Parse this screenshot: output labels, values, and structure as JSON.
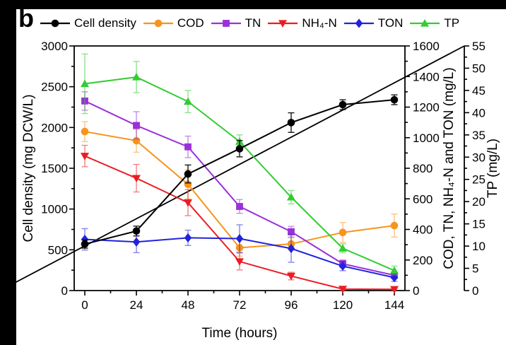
{
  "panel_label": "b",
  "chart_data": {
    "type": "line",
    "title": "",
    "xlabel": "Time (hours)",
    "x": [
      0,
      24,
      48,
      72,
      96,
      120,
      144
    ],
    "x_axis": {
      "min": 0,
      "max": 144,
      "major_ticks": [
        0,
        24,
        48,
        72,
        96,
        120,
        144
      ],
      "minor_step": 12
    },
    "axes": {
      "left": {
        "label": "Cell density (mg DCW/L)",
        "min": 0,
        "max": 3000,
        "major_ticks": [
          0,
          500,
          1000,
          1500,
          2000,
          2500,
          3000
        ],
        "minor_step": 250
      },
      "right1": {
        "label": "COD, TN, NH₄-N and TON (mg/L)",
        "min": 0,
        "max": 1600,
        "major_ticks": [
          0,
          200,
          400,
          600,
          800,
          1000,
          1200,
          1400,
          1600
        ],
        "minor_step": 100
      },
      "right2": {
        "label": "TP (mg/L)",
        "min": 0,
        "max": 55,
        "major_ticks": [
          0,
          5,
          10,
          15,
          20,
          25,
          30,
          35,
          40,
          45,
          50,
          55
        ],
        "minor_step": 2.5
      }
    },
    "grid": false,
    "legend_position": "top",
    "series": [
      {
        "name": "Cell density",
        "axis": "left",
        "color": "#000000",
        "marker": "circle",
        "values": [
          570,
          730,
          1430,
          1740,
          2060,
          2280,
          2340
        ],
        "errors": [
          50,
          60,
          110,
          100,
          120,
          60,
          60
        ]
      },
      {
        "name": "COD",
        "axis": "right1",
        "color": "#f7941d",
        "marker": "circle",
        "values": [
          1040,
          980,
          695,
          280,
          305,
          380,
          425
        ],
        "errors": [
          65,
          75,
          95,
          55,
          40,
          65,
          75
        ]
      },
      {
        "name": "TN",
        "axis": "right1",
        "color": "#9b30d9",
        "marker": "square",
        "values": [
          1240,
          1080,
          940,
          550,
          385,
          175,
          100
        ],
        "errors": [
          60,
          90,
          70,
          45,
          35,
          25,
          20
        ]
      },
      {
        "name": "NH₄-N",
        "axis": "right1",
        "color": "#ec1c24",
        "marker": "triangle-down",
        "values": [
          880,
          735,
          575,
          190,
          95,
          10,
          8
        ],
        "errors": [
          70,
          90,
          85,
          55,
          25,
          8,
          5
        ]
      },
      {
        "name": "TON",
        "axis": "right1",
        "color": "#2222dd",
        "marker": "diamond",
        "values": [
          335,
          318,
          345,
          340,
          275,
          160,
          85
        ],
        "errors": [
          70,
          70,
          50,
          90,
          90,
          30,
          25
        ]
      },
      {
        "name": "TP",
        "axis": "right2",
        "color": "#33cc33",
        "marker": "triangle-up",
        "values": [
          46.5,
          48,
          42.5,
          33.5,
          21,
          9.5,
          4.5
        ],
        "errors": [
          6.7,
          3.5,
          2.5,
          1.5,
          1.5,
          1,
          1
        ]
      }
    ]
  }
}
